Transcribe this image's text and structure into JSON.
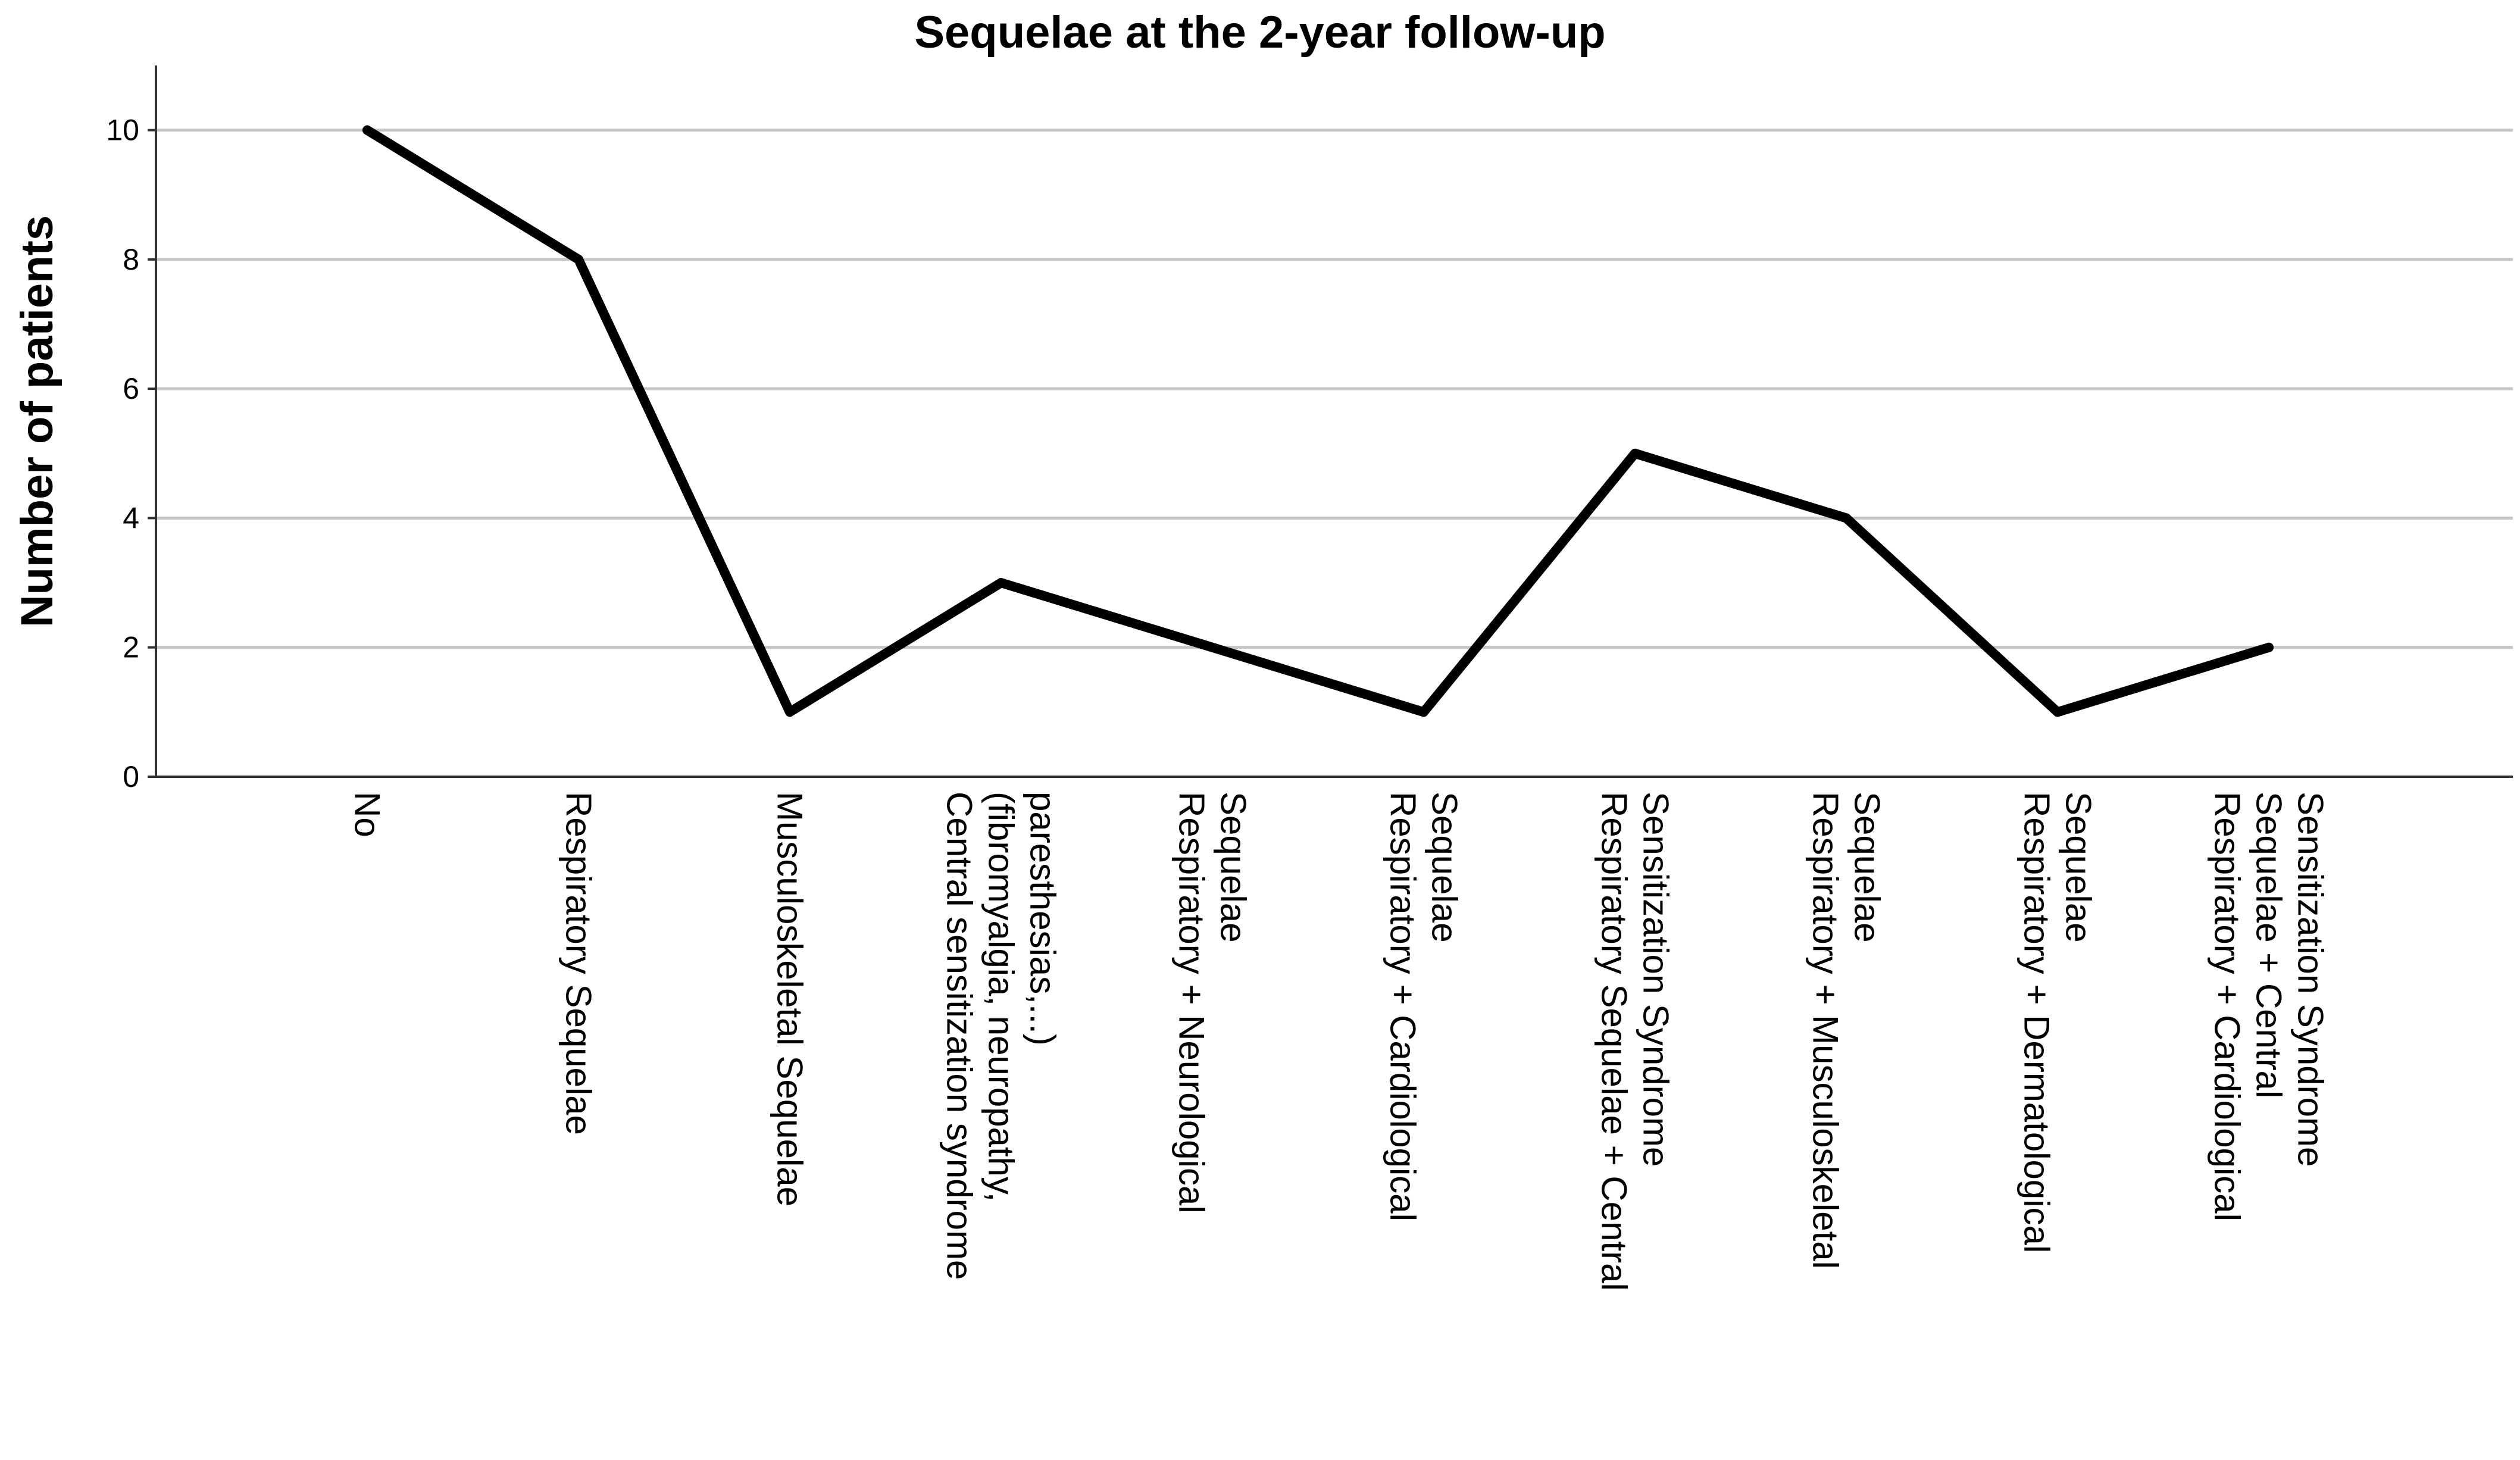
{
  "chart_data": {
    "type": "line",
    "title": "Sequelae at the 2-year follow-up",
    "xlabel": "",
    "ylabel": "Number of patients",
    "ylim": [
      0,
      11
    ],
    "yticks": [
      0,
      2,
      4,
      6,
      8,
      10
    ],
    "grid": true,
    "categories": [
      [
        "No"
      ],
      [
        "Respiratory Sequelae"
      ],
      [
        "Musculoskeletal Sequelae"
      ],
      [
        "Central sensitization syndrome",
        "(fibromyalgia, neuropathy,",
        "paresthesias,...)"
      ],
      [
        "Respiratory + Neurological",
        "Sequelae"
      ],
      [
        "Respiratory + Cardiological",
        "Sequelae"
      ],
      [
        "Respiratory Sequelae + Central",
        "Sensitization Syndrome"
      ],
      [
        "Respiratory + Musculoskeletal",
        "Sequelae"
      ],
      [
        "Respiratory + Dermatological",
        "Sequelae"
      ],
      [
        "Respiratory + Cardiological",
        "Sequelae + Central",
        "Sensitization Syndrome"
      ]
    ],
    "series": [
      {
        "values": [
          10,
          8,
          1,
          3,
          2,
          1,
          5,
          4,
          1,
          2
        ],
        "color": "#000000"
      }
    ]
  }
}
